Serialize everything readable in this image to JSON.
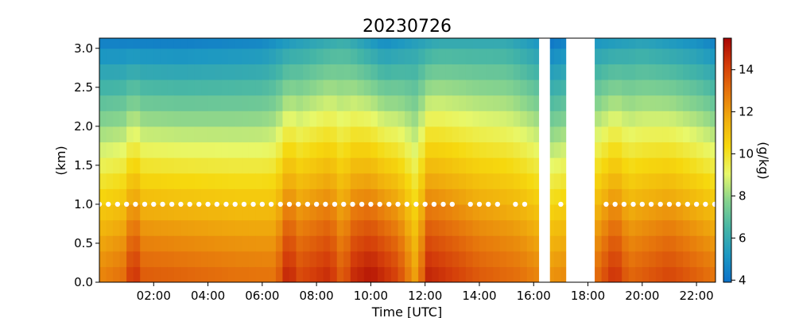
{
  "chart_data": {
    "type": "heatmap",
    "title": "20230726",
    "xlabel": "Time [UTC]",
    "ylabel": "(km)",
    "colorbar_label": "(g/kg)",
    "xlim_hours": [
      0,
      22.7
    ],
    "ylim": [
      0.0,
      3.13
    ],
    "x_ticks": [
      {
        "hour": 2,
        "label": "02:00"
      },
      {
        "hour": 4,
        "label": "04:00"
      },
      {
        "hour": 6,
        "label": "06:00"
      },
      {
        "hour": 8,
        "label": "08:00"
      },
      {
        "hour": 10,
        "label": "10:00"
      },
      {
        "hour": 12,
        "label": "12:00"
      },
      {
        "hour": 14,
        "label": "14:00"
      },
      {
        "hour": 16,
        "label": "16:00"
      },
      {
        "hour": 18,
        "label": "18:00"
      },
      {
        "hour": 20,
        "label": "20:00"
      },
      {
        "hour": 22,
        "label": "22:00"
      }
    ],
    "y_ticks": [
      {
        "value": 0.0,
        "label": "0.0"
      },
      {
        "value": 0.5,
        "label": "0.5"
      },
      {
        "value": 1.0,
        "label": "1.0"
      },
      {
        "value": 1.5,
        "label": "1.5"
      },
      {
        "value": 2.0,
        "label": "2.0"
      },
      {
        "value": 2.5,
        "label": "2.5"
      },
      {
        "value": 3.0,
        "label": "3.0"
      }
    ],
    "colorbar": {
      "range": [
        3.9,
        15.5
      ],
      "ticks": [
        {
          "value": 4,
          "label": "4"
        },
        {
          "value": 6,
          "label": "6"
        },
        {
          "value": 8,
          "label": "8"
        },
        {
          "value": 10,
          "label": "10"
        },
        {
          "value": 12,
          "label": "12"
        },
        {
          "value": 14,
          "label": "14"
        }
      ],
      "colors": [
        "#0c71c9",
        "#1d98c2",
        "#45b5a6",
        "#86d38e",
        "#e8f86a",
        "#f6d80e",
        "#f0ad0d",
        "#e6750c",
        "#d43d0a",
        "#a80505"
      ]
    },
    "cell_height_km": 0.2,
    "cell_width_hours": 0.25,
    "gaps_hours": [
      [
        16.2,
        16.6
      ],
      [
        17.2,
        18.2
      ]
    ],
    "surface_mixing_ratio_by_time": [
      {
        "hour": 0.0,
        "value": 12.6
      },
      {
        "hour": 1.0,
        "value": 13.2
      },
      {
        "hour": 1.25,
        "value": 15.2
      },
      {
        "hour": 1.5,
        "value": 13.6
      },
      {
        "hour": 3.0,
        "value": 13.4
      },
      {
        "hour": 5.0,
        "value": 13.1
      },
      {
        "hour": 6.5,
        "value": 13.0
      },
      {
        "hour": 7.0,
        "value": 15.3
      },
      {
        "hour": 7.25,
        "value": 13.9
      },
      {
        "hour": 8.5,
        "value": 14.7
      },
      {
        "hour": 9.0,
        "value": 13.2
      },
      {
        "hour": 9.25,
        "value": 14.6
      },
      {
        "hour": 10.0,
        "value": 15.2
      },
      {
        "hour": 11.0,
        "value": 14.1
      },
      {
        "hour": 11.75,
        "value": 11.6
      },
      {
        "hour": 12.0,
        "value": 14.9
      },
      {
        "hour": 13.0,
        "value": 14.3
      },
      {
        "hour": 14.0,
        "value": 13.6
      },
      {
        "hour": 15.5,
        "value": 13.1
      },
      {
        "hour": 16.6,
        "value": 12.3
      },
      {
        "hour": 18.2,
        "value": 12.9
      },
      {
        "hour": 19.0,
        "value": 14.7
      },
      {
        "hour": 19.5,
        "value": 13.3
      },
      {
        "hour": 21.0,
        "value": 14.1
      },
      {
        "hour": 22.7,
        "value": 13.0
      }
    ],
    "top_mixing_ratio_by_time": [
      {
        "hour": 0.0,
        "value": 4.4
      },
      {
        "hour": 3.0,
        "value": 4.3
      },
      {
        "hour": 6.0,
        "value": 4.6
      },
      {
        "hour": 7.0,
        "value": 5.3
      },
      {
        "hour": 9.0,
        "value": 6.2
      },
      {
        "hour": 10.5,
        "value": 4.8
      },
      {
        "hour": 12.5,
        "value": 5.9
      },
      {
        "hour": 15.0,
        "value": 5.9
      },
      {
        "hour": 16.2,
        "value": 5.1
      },
      {
        "hour": 16.6,
        "value": 4.1
      },
      {
        "hour": 18.2,
        "value": 5.1
      },
      {
        "hour": 20.0,
        "value": 5.6
      },
      {
        "hour": 22.0,
        "value": 4.9
      },
      {
        "hour": 22.7,
        "value": 4.4
      }
    ],
    "markers": {
      "height_km": 1.0,
      "color": "#ffffff",
      "hours": [
        0.0,
        0.33,
        0.67,
        1.0,
        1.33,
        1.67,
        2.0,
        2.33,
        2.67,
        3.0,
        3.33,
        3.67,
        4.0,
        4.33,
        4.67,
        5.0,
        5.33,
        5.67,
        6.0,
        6.33,
        6.67,
        7.0,
        7.33,
        7.67,
        8.0,
        8.33,
        8.67,
        9.0,
        9.33,
        9.67,
        10.0,
        10.33,
        10.67,
        11.0,
        11.33,
        11.67,
        12.0,
        12.33,
        12.67,
        13.0,
        13.67,
        14.0,
        14.33,
        14.67,
        15.33,
        15.67,
        17.0,
        18.67,
        19.0,
        19.33,
        19.67,
        20.0,
        20.33,
        20.67,
        21.0,
        21.33,
        21.67,
        22.0,
        22.33,
        22.67
      ]
    }
  }
}
